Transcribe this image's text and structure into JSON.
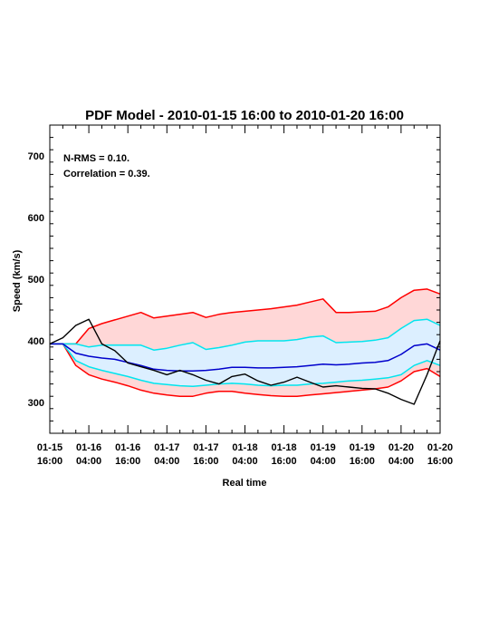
{
  "chart_data": {
    "type": "line",
    "title": "PDF Model - 2010-01-15 16:00 to 2010-01-20 16:00",
    "xlabel": "Real time",
    "ylabel": "Speed (km/s)",
    "xlim": [
      "2010-01-15T16:00",
      "2010-01-20T16:00"
    ],
    "ylim": [
      250,
      750
    ],
    "yticks": [
      300,
      400,
      500,
      600,
      700
    ],
    "xticks": [
      {
        "x": "2010-01-15T16:00",
        "line1": "01-15",
        "line2": "16:00"
      },
      {
        "x": "2010-01-16T04:00",
        "line1": "01-16",
        "line2": "04:00"
      },
      {
        "x": "2010-01-16T16:00",
        "line1": "01-16",
        "line2": "16:00"
      },
      {
        "x": "2010-01-17T04:00",
        "line1": "01-17",
        "line2": "04:00"
      },
      {
        "x": "2010-01-17T16:00",
        "line1": "01-17",
        "line2": "16:00"
      },
      {
        "x": "2010-01-18T04:00",
        "line1": "01-18",
        "line2": "04:00"
      },
      {
        "x": "2010-01-18T16:00",
        "line1": "01-18",
        "line2": "16:00"
      },
      {
        "x": "2010-01-19T04:00",
        "line1": "01-19",
        "line2": "04:00"
      },
      {
        "x": "2010-01-19T16:00",
        "line1": "01-19",
        "line2": "16:00"
      },
      {
        "x": "2010-01-20T04:00",
        "line1": "01-20",
        "line2": "04:00"
      },
      {
        "x": "2010-01-20T16:00",
        "line1": "01-20",
        "line2": "16:00"
      }
    ],
    "annotations": [
      "N-RMS = 0.10.",
      "Correlation = 0.39."
    ],
    "grid": false,
    "colors": {
      "outer_band": "#ff0000",
      "outer_fill": "#ffd7d7",
      "inner_band": "#00e5ee",
      "inner_fill": "#dcefff",
      "median": "#0000cc",
      "observed": "#000000"
    },
    "x": [
      "2010-01-15T16:00",
      "2010-01-15T20:00",
      "2010-01-16T00:00",
      "2010-01-16T04:00",
      "2010-01-16T08:00",
      "2010-01-16T12:00",
      "2010-01-16T16:00",
      "2010-01-16T20:00",
      "2010-01-17T00:00",
      "2010-01-17T04:00",
      "2010-01-17T08:00",
      "2010-01-17T12:00",
      "2010-01-17T16:00",
      "2010-01-17T20:00",
      "2010-01-18T00:00",
      "2010-01-18T04:00",
      "2010-01-18T08:00",
      "2010-01-18T12:00",
      "2010-01-18T16:00",
      "2010-01-18T20:00",
      "2010-01-19T00:00",
      "2010-01-19T04:00",
      "2010-01-19T08:00",
      "2010-01-19T12:00",
      "2010-01-19T16:00",
      "2010-01-19T20:00",
      "2010-01-20T00:00",
      "2010-01-20T04:00",
      "2010-01-20T08:00",
      "2010-01-20T12:00",
      "2010-01-20T16:00"
    ],
    "series": [
      {
        "role": "band_upper",
        "color": "#ff0000",
        "values": [
          395,
          395,
          395,
          420,
          428,
          434,
          440,
          446,
          437,
          440,
          443,
          446,
          438,
          443,
          446,
          448,
          450,
          452,
          455,
          458,
          463,
          468,
          446,
          446,
          447,
          448,
          455,
          470,
          482,
          484,
          476
        ]
      },
      {
        "role": "band_lower",
        "color": "#ff0000",
        "values": [
          395,
          395,
          360,
          345,
          338,
          333,
          327,
          320,
          315,
          312,
          310,
          310,
          315,
          318,
          318,
          315,
          313,
          311,
          310,
          310,
          312,
          314,
          316,
          318,
          320,
          322,
          325,
          335,
          350,
          355,
          342
        ]
      },
      {
        "role": "inner_upper",
        "color": "#00e5ee",
        "values": [
          395,
          395,
          395,
          390,
          393,
          393,
          393,
          393,
          385,
          388,
          393,
          397,
          386,
          389,
          393,
          398,
          400,
          400,
          400,
          402,
          406,
          408,
          397,
          398,
          399,
          401,
          405,
          420,
          433,
          435,
          425
        ]
      },
      {
        "role": "inner_lower",
        "color": "#00e5ee",
        "values": [
          395,
          395,
          368,
          358,
          352,
          347,
          342,
          336,
          331,
          329,
          327,
          326,
          328,
          330,
          331,
          330,
          328,
          327,
          328,
          328,
          330,
          331,
          333,
          335,
          336,
          338,
          340,
          345,
          360,
          368,
          360
        ]
      },
      {
        "role": "median",
        "color": "#0000cc",
        "values": [
          395,
          395,
          380,
          375,
          372,
          370,
          365,
          360,
          354,
          352,
          351,
          351,
          352,
          354,
          357,
          357,
          356,
          356,
          357,
          358,
          360,
          362,
          361,
          362,
          364,
          365,
          368,
          378,
          392,
          395,
          385
        ]
      },
      {
        "role": "observed",
        "color": "#000000",
        "values": [
          395,
          405,
          425,
          435,
          395,
          384,
          364,
          358,
          352,
          345,
          352,
          345,
          336,
          330,
          342,
          346,
          335,
          328,
          333,
          341,
          333,
          325,
          327,
          325,
          323,
          322,
          315,
          305,
          297,
          345,
          400
        ]
      }
    ]
  }
}
